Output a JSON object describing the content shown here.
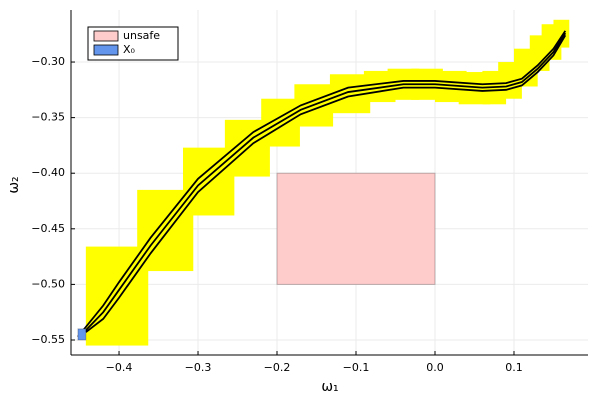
{
  "chart_data": {
    "type": "reach",
    "xlabel": "ω₁",
    "ylabel": "ω₂",
    "xlim": [
      -0.4608,
      0.1937
    ],
    "ylim": [
      -0.5635,
      -0.2532
    ],
    "xticks": [
      {
        "value": -0.4,
        "label": "−0.4"
      },
      {
        "value": -0.3,
        "label": "−0.3"
      },
      {
        "value": -0.2,
        "label": "−0.2"
      },
      {
        "value": -0.1,
        "label": "−0.1"
      },
      {
        "value": 0,
        "label": "0.0"
      },
      0.1
    ],
    "yticks": [
      {
        "value": -0.55,
        "label": "−0.55"
      },
      {
        "value": -0.5,
        "label": "−0.50"
      },
      {
        "value": -0.45,
        "label": "−0.45"
      },
      {
        "value": -0.4,
        "label": "−0.40"
      },
      {
        "value": -0.35,
        "label": "−0.35"
      },
      {
        "value": -0.3,
        "label": "−0.30"
      }
    ],
    "grid": true,
    "legend": "top-left",
    "reach_sets": {
      "color": "#ffff00",
      "boxes": [
        [
          -0.442,
          -0.363,
          -0.555,
          -0.466
        ],
        [
          -0.377,
          -0.306,
          -0.488,
          -0.415
        ],
        [
          -0.319,
          -0.254,
          -0.438,
          -0.377
        ],
        [
          -0.266,
          -0.209,
          -0.403,
          -0.352
        ],
        [
          -0.22,
          -0.171,
          -0.376,
          -0.333
        ],
        [
          -0.178,
          -0.129,
          -0.358,
          -0.32
        ],
        [
          -0.133,
          -0.082,
          -0.346,
          -0.311
        ],
        [
          -0.09,
          -0.05,
          -0.336,
          -0.308
        ],
        [
          -0.06,
          -0.02,
          -0.334,
          -0.306
        ],
        [
          -0.03,
          0.01,
          -0.334,
          -0.306
        ],
        [
          0.0,
          0.04,
          -0.336,
          -0.308
        ],
        [
          0.03,
          0.07,
          -0.338,
          -0.309
        ],
        [
          0.06,
          0.09,
          -0.338,
          -0.308
        ],
        [
          0.08,
          0.11,
          -0.333,
          -0.3
        ],
        [
          0.1,
          0.13,
          -0.322,
          -0.288
        ],
        [
          0.12,
          0.145,
          -0.308,
          -0.276
        ],
        [
          0.135,
          0.16,
          -0.298,
          -0.266
        ],
        [
          0.15,
          0.17,
          -0.287,
          -0.262
        ]
      ]
    },
    "series": [
      {
        "name": "unsafe",
        "color": "#ffcccc",
        "xrange": [
          -0.2,
          0
        ],
        "yrange": [
          -0.5,
          -0.4
        ]
      },
      {
        "name": "X₀",
        "color": "#6495ed",
        "xrange": [
          -0.452,
          -0.442
        ],
        "yrange": [
          -0.55,
          -0.54
        ]
      }
    ],
    "trajectories": {
      "color": "#000000",
      "lines": [
        {
          "x": [
            -0.447,
            -0.42,
            -0.4,
            -0.36,
            -0.3,
            -0.23,
            -0.17,
            -0.11,
            -0.04,
            0,
            0.06,
            0.09,
            0.11,
            0.13,
            0.15,
            0.165
          ],
          "y": [
            -0.545,
            -0.525,
            -0.505,
            -0.465,
            -0.411,
            -0.368,
            -0.343,
            -0.327,
            -0.32,
            -0.32,
            -0.323,
            -0.322,
            -0.318,
            -0.306,
            -0.291,
            -0.274
          ]
        },
        {
          "x": [
            -0.452,
            -0.42,
            -0.4,
            -0.36,
            -0.3,
            -0.23,
            -0.17,
            -0.11,
            -0.04,
            0,
            0.06,
            0.09,
            0.11,
            0.13,
            0.15,
            0.165
          ],
          "y": [
            -0.547,
            -0.519,
            -0.498,
            -0.458,
            -0.405,
            -0.363,
            -0.339,
            -0.323,
            -0.317,
            -0.317,
            -0.32,
            -0.319,
            -0.315,
            -0.303,
            -0.288,
            -0.272
          ]
        },
        {
          "x": [
            -0.442,
            -0.42,
            -0.4,
            -0.36,
            -0.3,
            -0.23,
            -0.17,
            -0.11,
            -0.04,
            0,
            0.06,
            0.09,
            0.11,
            0.13,
            0.15,
            0.165
          ],
          "y": [
            -0.543,
            -0.531,
            -0.512,
            -0.472,
            -0.417,
            -0.373,
            -0.347,
            -0.331,
            -0.323,
            -0.323,
            -0.326,
            -0.325,
            -0.321,
            -0.309,
            -0.294,
            -0.276
          ]
        }
      ]
    }
  }
}
